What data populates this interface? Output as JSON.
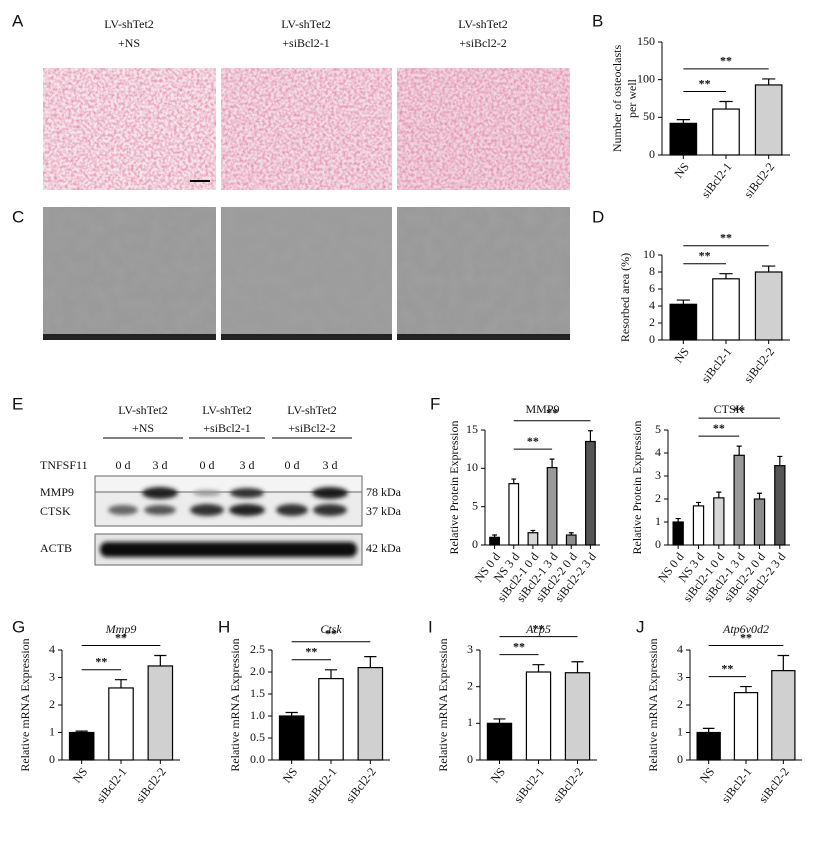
{
  "panel_a": {
    "letter": "A",
    "headers": [
      [
        "LV-shTet2",
        "+NS"
      ],
      [
        "LV-shTet2",
        "+siBcl2-1"
      ],
      [
        "LV-shTet2",
        "+siBcl2-2"
      ]
    ]
  },
  "panel_c": {
    "letter": "C"
  },
  "panel_e": {
    "letter": "E",
    "headers": [
      [
        "LV-shTet2",
        "+NS"
      ],
      [
        "LV-shTet2",
        "+siBcl2-1"
      ],
      [
        "LV-shTet2",
        "+siBcl2-2"
      ]
    ],
    "treatment_label": "TNFSF11",
    "timepoints": [
      "0 d",
      "3 d",
      "0 d",
      "3 d",
      "0 d",
      "3 d"
    ],
    "rows": [
      {
        "name": "MMP9",
        "size": "78 kDa"
      },
      {
        "name": "CTSK",
        "size": "37 kDa"
      },
      {
        "name": "ACTB",
        "size": "42 kDa"
      }
    ]
  },
  "chart_data": [
    {
      "type": "bar",
      "letter": "B",
      "ylabel": [
        "Number of osteoclasts",
        "per well"
      ],
      "categories": [
        "NS",
        "siBcl2-1",
        "siBcl2-2"
      ],
      "values": [
        42,
        61,
        93
      ],
      "errors": [
        5,
        10,
        8
      ],
      "colors": [
        "#000000",
        "#ffffff",
        "#d0d0d0"
      ],
      "ylim": [
        0,
        150
      ],
      "yticks": [
        0,
        50,
        100,
        150
      ],
      "annotations": [
        {
          "from": 0,
          "to": 1,
          "label": "**"
        },
        {
          "from": 0,
          "to": 2,
          "label": "**"
        }
      ]
    },
    {
      "type": "bar",
      "letter": "D",
      "ylabel": "Resorbed area (%)",
      "categories": [
        "NS",
        "siBcl2-1",
        "siBcl2-2"
      ],
      "values": [
        4.2,
        7.2,
        8.0
      ],
      "errors": [
        0.5,
        0.6,
        0.7
      ],
      "colors": [
        "#000000",
        "#ffffff",
        "#d0d0d0"
      ],
      "ylim": [
        0,
        10
      ],
      "yticks": [
        0,
        2,
        4,
        6,
        8,
        10
      ],
      "annotations": [
        {
          "from": 0,
          "to": 1,
          "label": "**"
        },
        {
          "from": 0,
          "to": 2,
          "label": "**"
        }
      ]
    },
    {
      "type": "bar",
      "letter": "F",
      "title": "MMP9",
      "ylabel": "Relative Protein Expression",
      "categories": [
        "NS 0 d",
        "NS 3 d",
        "siBcl2-1 0 d",
        "siBcl2-1 3 d",
        "siBcl2-2 0 d",
        "siBcl2-2 3 d"
      ],
      "values": [
        1.0,
        8.0,
        1.6,
        10.1,
        1.3,
        13.5
      ],
      "errors": [
        0.3,
        0.6,
        0.3,
        1.1,
        0.3,
        1.4
      ],
      "colors": [
        "#000000",
        "#ffffff",
        "#d6d6d6",
        "#9a9a9a",
        "#8c8c8c",
        "#555555"
      ],
      "ylim": [
        0,
        15
      ],
      "yticks": [
        0,
        5,
        10,
        15
      ],
      "annotations": [
        {
          "from": 1,
          "to": 3,
          "label": "**"
        },
        {
          "from": 1,
          "to": 5,
          "label": "**"
        }
      ]
    },
    {
      "type": "bar",
      "title": "CTSK",
      "ylabel": "Relative Protein Expression",
      "categories": [
        "NS 0 d",
        "NS 3 d",
        "siBcl2-1 0 d",
        "siBcl2-1 3 d",
        "siBcl2-2 0 d",
        "siBcl2-2 3 d"
      ],
      "values": [
        1.0,
        1.7,
        2.05,
        3.9,
        2.0,
        3.45
      ],
      "errors": [
        0.15,
        0.15,
        0.25,
        0.4,
        0.25,
        0.4
      ],
      "colors": [
        "#000000",
        "#ffffff",
        "#d6d6d6",
        "#9a9a9a",
        "#8c8c8c",
        "#555555"
      ],
      "ylim": [
        0,
        5
      ],
      "yticks": [
        0,
        1,
        2,
        3,
        4,
        5
      ],
      "annotations": [
        {
          "from": 1,
          "to": 3,
          "label": "**"
        },
        {
          "from": 1,
          "to": 5,
          "label": "**"
        }
      ]
    },
    {
      "type": "bar",
      "letter": "G",
      "title": "Mmp9",
      "ylabel": "Relative mRNA Expression",
      "categories": [
        "NS",
        "siBcl2-1",
        "siBcl2-2"
      ],
      "values": [
        1.0,
        2.62,
        3.42
      ],
      "errors": [
        0.05,
        0.3,
        0.38
      ],
      "colors": [
        "#000000",
        "#ffffff",
        "#d0d0d0"
      ],
      "ylim": [
        0,
        4
      ],
      "yticks": [
        0,
        1,
        2,
        3,
        4
      ],
      "annotations": [
        {
          "from": 0,
          "to": 1,
          "label": "**"
        },
        {
          "from": 0,
          "to": 2,
          "label": "**"
        }
      ]
    },
    {
      "type": "bar",
      "letter": "H",
      "title": "Ctsk",
      "ylabel": "Relative mRNA Expression",
      "categories": [
        "NS",
        "siBcl2-1",
        "siBcl2-2"
      ],
      "values": [
        1.0,
        1.85,
        2.1
      ],
      "errors": [
        0.08,
        0.2,
        0.25
      ],
      "colors": [
        "#000000",
        "#ffffff",
        "#d0d0d0"
      ],
      "ylim": [
        0,
        2.5
      ],
      "yticks": [
        {
          "value": 0,
          "label": "0.0"
        },
        0.5,
        {
          "value": 1,
          "label": "1.0"
        },
        1.5,
        {
          "value": 2,
          "label": "2.0"
        },
        2.5
      ],
      "annotations": [
        {
          "from": 0,
          "to": 1,
          "label": "**"
        },
        {
          "from": 0,
          "to": 2,
          "label": "**"
        }
      ]
    },
    {
      "type": "bar",
      "letter": "I",
      "title": "Acp5",
      "ylabel": "Relative mRNA Expression",
      "categories": [
        "NS",
        "siBcl2-1",
        "siBcl2-2"
      ],
      "values": [
        1.0,
        2.4,
        2.38
      ],
      "errors": [
        0.12,
        0.2,
        0.3
      ],
      "colors": [
        "#000000",
        "#ffffff",
        "#d0d0d0"
      ],
      "ylim": [
        0,
        3
      ],
      "yticks": [
        0,
        1,
        2,
        3
      ],
      "annotations": [
        {
          "from": 0,
          "to": 1,
          "label": "**"
        },
        {
          "from": 0,
          "to": 2,
          "label": "**"
        }
      ]
    },
    {
      "type": "bar",
      "letter": "J",
      "title": "Atp6v0d2",
      "ylabel": "Relative mRNA Expression",
      "categories": [
        "NS",
        "siBcl2-1",
        "siBcl2-2"
      ],
      "values": [
        1.0,
        2.45,
        3.25
      ],
      "errors": [
        0.15,
        0.22,
        0.55
      ],
      "colors": [
        "#000000",
        "#ffffff",
        "#d0d0d0"
      ],
      "ylim": [
        0,
        4
      ],
      "yticks": [
        0,
        1,
        2,
        3,
        4
      ],
      "annotations": [
        {
          "from": 0,
          "to": 1,
          "label": "**"
        },
        {
          "from": 0,
          "to": 2,
          "label": "**"
        }
      ]
    }
  ]
}
